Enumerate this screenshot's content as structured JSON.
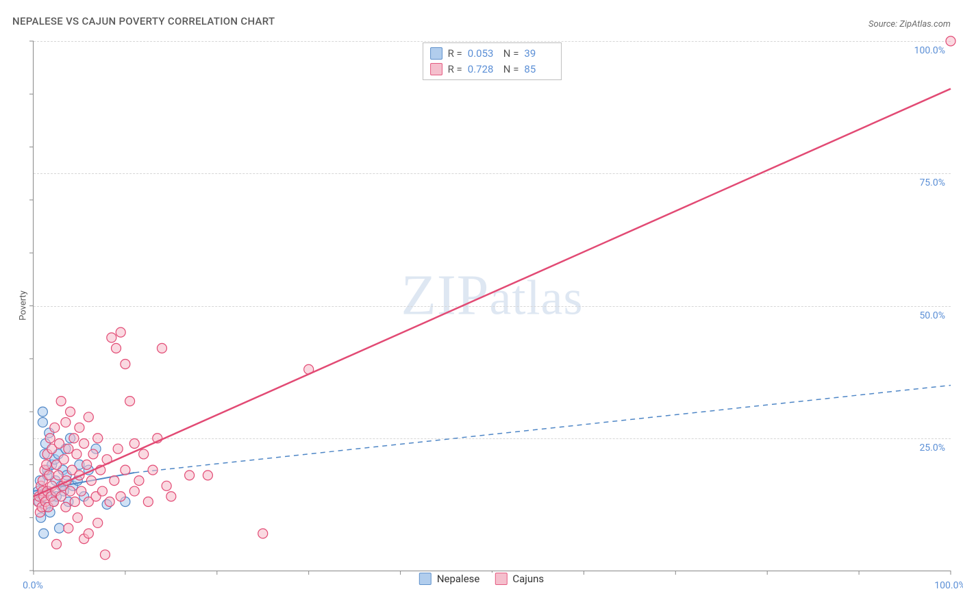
{
  "title": "NEPALESE VS CAJUN POVERTY CORRELATION CHART",
  "source": "Source: ZipAtlas.com",
  "watermark": "ZIPatlas",
  "y_axis_label": "Poverty",
  "chart": {
    "type": "scatter",
    "xlim": [
      0,
      100
    ],
    "ylim": [
      0,
      100
    ],
    "y_ticks": [
      25,
      50,
      75,
      100
    ],
    "y_tick_labels": [
      "25.0%",
      "50.0%",
      "75.0%",
      "100.0%"
    ],
    "x_tick_labels": {
      "start": "0.0%",
      "end": "100.0%"
    },
    "x_minor_ticks": [
      0,
      10,
      20,
      30,
      40,
      50,
      60,
      70,
      80,
      90,
      100
    ],
    "y_minor_ticks": [
      0,
      10,
      20,
      30,
      40,
      50,
      60,
      70,
      80,
      90,
      100
    ],
    "background_color": "#ffffff",
    "grid_color": "#d6d6d6",
    "axis_color": "#888888",
    "marker_radius": 7,
    "marker_stroke_width": 1.2,
    "series": [
      {
        "name": "Nepalese",
        "fill_color": "#a9c8ec",
        "stroke_color": "#4e86c6",
        "fill_opacity": 0.55,
        "stats": {
          "R": "0.053",
          "N": "39"
        },
        "trend": {
          "solid": {
            "x1": 0,
            "y1": 15,
            "x2": 11,
            "y2": 18.5
          },
          "dashed": {
            "x1": 11,
            "y1": 18.5,
            "x2": 100,
            "y2": 35
          },
          "stroke": "#4e86c6",
          "width": 2
        },
        "points": [
          [
            0.5,
            15
          ],
          [
            0.6,
            13
          ],
          [
            0.7,
            17
          ],
          [
            0.8,
            10
          ],
          [
            0.9,
            14
          ],
          [
            1.0,
            28
          ],
          [
            1.0,
            30
          ],
          [
            1.1,
            7
          ],
          [
            1.2,
            22
          ],
          [
            1.3,
            12
          ],
          [
            1.3,
            24
          ],
          [
            1.5,
            18
          ],
          [
            1.5,
            19
          ],
          [
            1.6,
            15
          ],
          [
            1.7,
            26
          ],
          [
            1.8,
            11
          ],
          [
            2.0,
            14
          ],
          [
            2.0,
            20
          ],
          [
            2.2,
            13
          ],
          [
            2.3,
            21
          ],
          [
            2.4,
            17
          ],
          [
            2.5,
            14
          ],
          [
            2.7,
            22
          ],
          [
            2.8,
            8
          ],
          [
            3.0,
            16
          ],
          [
            3.2,
            19
          ],
          [
            3.3,
            15
          ],
          [
            3.5,
            23
          ],
          [
            3.6,
            18
          ],
          [
            3.8,
            13
          ],
          [
            4.0,
            25
          ],
          [
            4.3,
            16
          ],
          [
            4.8,
            17
          ],
          [
            5.0,
            20
          ],
          [
            5.5,
            14
          ],
          [
            6.0,
            19
          ],
          [
            6.8,
            23
          ],
          [
            8.0,
            12.5
          ],
          [
            10.0,
            13
          ]
        ]
      },
      {
        "name": "Cajuns",
        "fill_color": "#f5b9c8",
        "stroke_color": "#e24a74",
        "fill_opacity": 0.55,
        "stats": {
          "R": "0.728",
          "N": "85"
        },
        "trend": {
          "solid": {
            "x1": 0,
            "y1": 14,
            "x2": 100,
            "y2": 91
          },
          "dashed": null,
          "stroke": "#e24a74",
          "width": 2.5
        },
        "points": [
          [
            0.5,
            13
          ],
          [
            0.6,
            14
          ],
          [
            0.7,
            11
          ],
          [
            0.8,
            16
          ],
          [
            0.9,
            12
          ],
          [
            1.0,
            15
          ],
          [
            1.0,
            17
          ],
          [
            1.1,
            14
          ],
          [
            1.2,
            19
          ],
          [
            1.3,
            13
          ],
          [
            1.4,
            20
          ],
          [
            1.5,
            15
          ],
          [
            1.5,
            22
          ],
          [
            1.6,
            12
          ],
          [
            1.7,
            18
          ],
          [
            1.8,
            25
          ],
          [
            1.9,
            14
          ],
          [
            2.0,
            16
          ],
          [
            2.0,
            23
          ],
          [
            2.2,
            13
          ],
          [
            2.3,
            27
          ],
          [
            2.4,
            15
          ],
          [
            2.5,
            20
          ],
          [
            2.5,
            5
          ],
          [
            2.7,
            18
          ],
          [
            2.8,
            24
          ],
          [
            3.0,
            14
          ],
          [
            3.0,
            32
          ],
          [
            3.2,
            16
          ],
          [
            3.3,
            21
          ],
          [
            3.5,
            12
          ],
          [
            3.5,
            28
          ],
          [
            3.6,
            17
          ],
          [
            3.8,
            23
          ],
          [
            3.8,
            8
          ],
          [
            4.0,
            15
          ],
          [
            4.0,
            30
          ],
          [
            4.2,
            19
          ],
          [
            4.4,
            25
          ],
          [
            4.5,
            13
          ],
          [
            4.7,
            22
          ],
          [
            4.8,
            10
          ],
          [
            5.0,
            18
          ],
          [
            5.0,
            27
          ],
          [
            5.2,
            15
          ],
          [
            5.5,
            6
          ],
          [
            5.5,
            24
          ],
          [
            5.8,
            20
          ],
          [
            6.0,
            13
          ],
          [
            6.0,
            29
          ],
          [
            6.0,
            7
          ],
          [
            6.3,
            17
          ],
          [
            6.5,
            22
          ],
          [
            6.8,
            14
          ],
          [
            7.0,
            25
          ],
          [
            7.0,
            9
          ],
          [
            7.3,
            19
          ],
          [
            7.5,
            15
          ],
          [
            7.8,
            3
          ],
          [
            8.0,
            21
          ],
          [
            8.3,
            13
          ],
          [
            8.5,
            44
          ],
          [
            8.8,
            17
          ],
          [
            9.0,
            42
          ],
          [
            9.2,
            23
          ],
          [
            9.5,
            14
          ],
          [
            9.5,
            45
          ],
          [
            10.0,
            19
          ],
          [
            10.0,
            39
          ],
          [
            10.5,
            32
          ],
          [
            11.0,
            15
          ],
          [
            11.0,
            24
          ],
          [
            11.5,
            17
          ],
          [
            12.0,
            22
          ],
          [
            12.5,
            13
          ],
          [
            13.0,
            19
          ],
          [
            13.5,
            25
          ],
          [
            14.0,
            42
          ],
          [
            14.5,
            16
          ],
          [
            15.0,
            14
          ],
          [
            17.0,
            18
          ],
          [
            19.0,
            18
          ],
          [
            25.0,
            7
          ],
          [
            30.0,
            38
          ],
          [
            100.0,
            100
          ]
        ]
      }
    ]
  },
  "legend": {
    "stats_label_R": "R =",
    "stats_label_N": "N ="
  }
}
